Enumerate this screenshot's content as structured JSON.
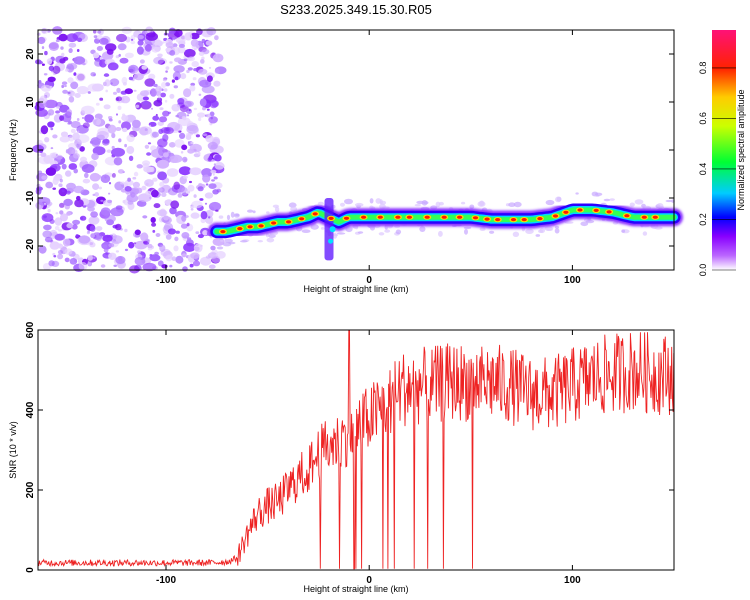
{
  "page_title": "S233.2025.349.15.30.R05",
  "chart_data": [
    {
      "id": "spectrogram",
      "type": "heatmap",
      "xlabel": "Height of straight line (km)",
      "ylabel": "Frequency (Hz)",
      "xlim": [
        -163,
        150
      ],
      "ylim": [
        -25,
        25
      ],
      "x_ticks": [
        -100,
        0,
        100
      ],
      "y_ticks": [
        20,
        10,
        0,
        -10,
        -20
      ],
      "noise_region_x": [
        -163,
        -73
      ],
      "signal_track": {
        "x": [
          -75,
          -70,
          -65,
          -60,
          -55,
          -50,
          -45,
          -40,
          -35,
          -30,
          -25,
          -20,
          -15,
          -10,
          0,
          10,
          20,
          30,
          40,
          50,
          60,
          70,
          80,
          90,
          100,
          110,
          120,
          130,
          140,
          150
        ],
        "freq": [
          -17,
          -17,
          -16.5,
          -16,
          -16,
          -15.5,
          -15,
          -15,
          -14.5,
          -14,
          -13,
          -14,
          -15,
          -14,
          -14,
          -14,
          -14,
          -14,
          -14,
          -14,
          -14.5,
          -14.5,
          -14.5,
          -14,
          -12.5,
          -12.5,
          -13,
          -14,
          -14,
          -14
        ]
      },
      "colorbar": {
        "label": "Normalized spectral amplitude",
        "ticks": [
          0.0,
          0.2,
          0.4,
          0.6,
          0.8
        ],
        "range": [
          0,
          0.95
        ],
        "colors": [
          "#ffffff",
          "#8800ff",
          "#0000ff",
          "#00ffff",
          "#00ff00",
          "#ffff00",
          "#ff8800",
          "#ff0000",
          "#ff0077"
        ]
      }
    },
    {
      "id": "snr",
      "type": "line",
      "xlabel": "Height of straight line (km)",
      "ylabel": "SNR (10 * v/v)",
      "xlim": [
        -163,
        150
      ],
      "ylim": [
        0,
        600
      ],
      "x_ticks": [
        -100,
        0,
        100
      ],
      "y_ticks": [
        0,
        200,
        400,
        600
      ],
      "line_color": "#ee2222",
      "series": [
        {
          "name": "SNR",
          "x": [
            -163,
            -150,
            -140,
            -130,
            -120,
            -110,
            -100,
            -90,
            -80,
            -70,
            -65,
            -60,
            -55,
            -50,
            -45,
            -40,
            -35,
            -30,
            -25,
            -20,
            -15,
            -10,
            -5,
            0,
            5,
            10,
            15,
            20,
            30,
            40,
            50,
            60,
            70,
            80,
            90,
            100,
            110,
            120,
            130,
            140,
            150
          ],
          "y": [
            18,
            18,
            18,
            18,
            18,
            18,
            18,
            18,
            18,
            20,
            30,
            90,
            140,
            160,
            170,
            200,
            230,
            250,
            290,
            310,
            320,
            340,
            360,
            380,
            400,
            420,
            450,
            460,
            460,
            470,
            470,
            470,
            460,
            440,
            440,
            460,
            480,
            490,
            500,
            490,
            490
          ]
        }
      ],
      "dropouts_x_range": [
        -30,
        55
      ],
      "spike": {
        "x": -10,
        "y": 600
      }
    }
  ]
}
